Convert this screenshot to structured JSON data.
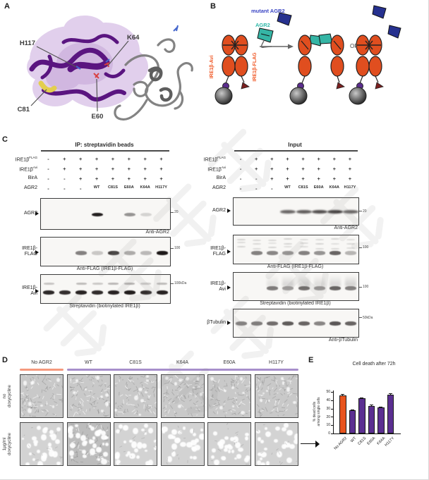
{
  "panels": {
    "a": {
      "label": "A",
      "residues": [
        {
          "name": "H117"
        },
        {
          "name": "K64"
        },
        {
          "name": "C81"
        },
        {
          "name": "E60"
        }
      ]
    },
    "b": {
      "label": "B",
      "mutant_agr2_label": "mutant AGR2",
      "agr2_label": "AGR2",
      "ire1b_avi_label": "IRE1β-Avi",
      "ire1b_flag_label": "IRE1β-FLAG",
      "or_label": "OR",
      "colors": {
        "ire1b": "#E04E1F",
        "agr2": "#35B5A5",
        "mutant_agr2": "#26318F",
        "biotin": "#5B2D8E"
      }
    },
    "c": {
      "label": "C",
      "condition_rows": [
        {
          "label": "IRE1β",
          "sup": "FLAG",
          "values": [
            "-",
            "+",
            "+",
            "+",
            "+",
            "+",
            "+",
            "+"
          ]
        },
        {
          "label": "IRE1β",
          "sup": "Avi",
          "values": [
            "-",
            "+",
            "+",
            "+",
            "+",
            "+",
            "+",
            "+"
          ]
        },
        {
          "label": "BirA",
          "sup": "",
          "values": [
            "-",
            "-",
            "+",
            "+",
            "+",
            "+",
            "+",
            "+"
          ]
        },
        {
          "label": "AGR2",
          "sup": "",
          "values": [
            "-",
            "-",
            "-",
            "WT",
            "C81S",
            "E60A",
            "K64A",
            "H117Y"
          ]
        }
      ],
      "ip": {
        "title": "IP: streptavidin beads",
        "blots": [
          {
            "target_lines": [
              "AGR2"
            ],
            "marker": "20",
            "caption": "Anti-AGR2",
            "bands": [
              0,
              0,
              0,
              0.92,
              0,
              0.42,
              0.15,
              0
            ],
            "band_y": 0.52
          },
          {
            "target_lines": [
              "IRE1β-",
              "FLAG"
            ],
            "marker": "100",
            "caption": "Anti-FLAG (IRE1β-FLAG)",
            "bands": [
              0,
              0,
              0.5,
              0.2,
              0.78,
              0.32,
              0.26,
              0.95
            ],
            "band_y": 0.55
          },
          {
            "target_lines": [
              "IRE1β-",
              "Avi"
            ],
            "marker": "100kDa",
            "caption": "Streptavidin (biotinylated IRE1β)",
            "bands": [
              0.88,
              0.85,
              0.9,
              0.86,
              0.9,
              0.93,
              0.86,
              0.9
            ],
            "upper": [
              0.22,
              0,
              0.26,
              0.2,
              0.28,
              0.3,
              0.2,
              0.26
            ],
            "band_y": 0.62
          }
        ]
      },
      "input": {
        "title": "Input",
        "blots": [
          {
            "target_lines": [
              "AGR2"
            ],
            "marker": "20",
            "caption": "Anti-AGR2",
            "bands": [
              0,
              0,
              0,
              0.62,
              0.66,
              0.72,
              0.8,
              0.62
            ],
            "joined": true,
            "band_y": 0.52
          },
          {
            "target_lines": [
              "IRE1β-",
              "FLAG"
            ],
            "marker": "100",
            "caption": "Anti-FLAG (IRE1β-FLAG)",
            "bands": [
              0,
              0.5,
              0.48,
              0.42,
              0.5,
              0.42,
              0.62,
              0.28
            ],
            "noise": true,
            "band_y": 0.62
          },
          {
            "target_lines": [
              "IRE1β-",
              "Avi"
            ],
            "marker": "100",
            "caption": "Streptavidin (biotinylated IRE1β)",
            "bands": [
              0,
              0,
              0.52,
              0.38,
              0.58,
              0.42,
              0.62,
              0.5
            ],
            "smear": [
              0,
              0,
              0.35,
              0.55,
              0.6,
              0.45,
              0.5,
              0.65
            ],
            "band_y": 0.57
          },
          {
            "target_lines": [
              "βTubulin"
            ],
            "marker": "50kDa",
            "caption": "Anti-βTubulin",
            "bands": [
              0.5,
              0.52,
              0.58,
              0.66,
              0.62,
              0.48,
              0.68,
              0.62
            ],
            "band_y": 0.52
          }
        ]
      }
    },
    "d": {
      "label": "D",
      "columns": [
        "No AGR2",
        "WT",
        "C81S",
        "K64A",
        "E60A",
        "H117Y"
      ],
      "row_labels": [
        [
          "no",
          "doxycycline"
        ],
        [
          "1μg/ml",
          "doxycycline"
        ]
      ],
      "accent_no_agr2": "#F5997E",
      "accent_mutants": "#A78FCB"
    },
    "e": {
      "label": "E",
      "chart_data": {
        "type": "bar",
        "title": "Cell death after 72h",
        "ylabel_lines": [
          "% dead cells",
          "among single cells"
        ],
        "categories": [
          "No AGR2",
          "WT",
          "C81S",
          "E60A",
          "K64A",
          "H117Y"
        ],
        "values": [
          46,
          28,
          42,
          33,
          31,
          47
        ],
        "errors": [
          1.5,
          1,
          1.5,
          1.5,
          1.5,
          1
        ],
        "bar_colors": [
          "#E8541D",
          "#5B2F91",
          "#5B2F91",
          "#5B2F91",
          "#5B2F91",
          "#5B2F91"
        ],
        "ylim": [
          0,
          50
        ],
        "yticks": [
          0,
          10,
          20,
          30,
          40,
          50
        ],
        "grid": false,
        "legend": "none"
      }
    }
  }
}
